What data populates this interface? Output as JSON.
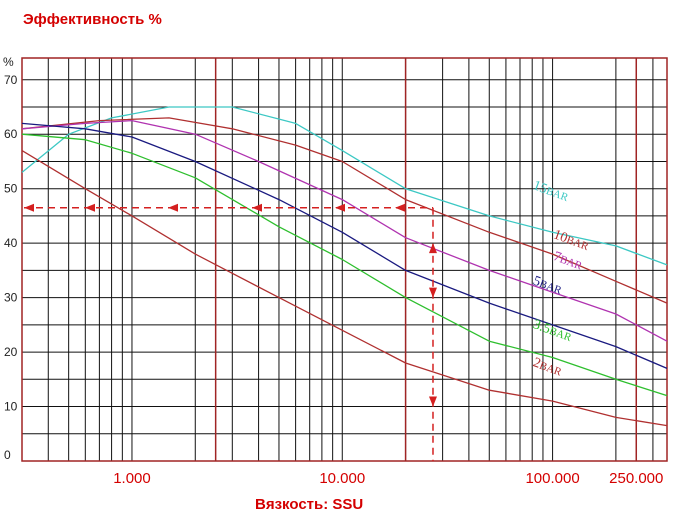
{
  "chart_data": {
    "type": "line",
    "title": "Эффективность %",
    "xlabel": "Вязкость: SSU",
    "ylabel": "%",
    "x_scale": "log",
    "xlim": [
      300,
      350000
    ],
    "ylim": [
      0,
      74
    ],
    "x_ticks": [
      {
        "value": 1000,
        "label": "1.000"
      },
      {
        "value": 10000,
        "label": "10.000"
      },
      {
        "value": 100000,
        "label": "100.000"
      },
      {
        "value": 250000,
        "label": "250.000"
      }
    ],
    "y_ticks": [
      0,
      10,
      20,
      30,
      40,
      50,
      60,
      70
    ],
    "grid": true,
    "series": [
      {
        "name": "15BAR",
        "label_main": "15",
        "color": "#3cc8c4",
        "label_at": [
          80000,
          50
        ],
        "points": [
          [
            300,
            53
          ],
          [
            500,
            60
          ],
          [
            800,
            63
          ],
          [
            1500,
            65
          ],
          [
            3000,
            65
          ],
          [
            6000,
            62
          ],
          [
            10000,
            57
          ],
          [
            20000,
            50
          ],
          [
            50000,
            45
          ],
          [
            100000,
            42
          ],
          [
            200000,
            39.5
          ],
          [
            350000,
            36
          ]
        ]
      },
      {
        "name": "10BAR",
        "label_main": "10",
        "color": "#b03030",
        "label_at": [
          100000,
          41
        ],
        "points": [
          [
            300,
            61
          ],
          [
            700,
            62.5
          ],
          [
            1500,
            63
          ],
          [
            3000,
            61
          ],
          [
            6000,
            58
          ],
          [
            10000,
            55
          ],
          [
            20000,
            48
          ],
          [
            50000,
            42
          ],
          [
            100000,
            38
          ],
          [
            200000,
            33
          ],
          [
            350000,
            29
          ]
        ]
      },
      {
        "name": "7BAR",
        "label_main": "7",
        "color": "#b033b0",
        "label_at": [
          100000,
          37
        ],
        "points": [
          [
            300,
            61
          ],
          [
            600,
            62
          ],
          [
            1000,
            62.5
          ],
          [
            2000,
            60
          ],
          [
            4000,
            55
          ],
          [
            10000,
            48
          ],
          [
            20000,
            41
          ],
          [
            50000,
            35
          ],
          [
            100000,
            31
          ],
          [
            200000,
            27
          ],
          [
            350000,
            22
          ]
        ]
      },
      {
        "name": "5BAR",
        "label_main": "5",
        "color": "#1a1a80",
        "label_at": [
          80000,
          32.5
        ],
        "points": [
          [
            300,
            62
          ],
          [
            600,
            61
          ],
          [
            1000,
            59.5
          ],
          [
            2000,
            55
          ],
          [
            5000,
            48
          ],
          [
            10000,
            42
          ],
          [
            20000,
            35
          ],
          [
            50000,
            29
          ],
          [
            100000,
            25
          ],
          [
            200000,
            21
          ],
          [
            350000,
            17
          ]
        ]
      },
      {
        "name": "3.5BAR",
        "label_main": "3.5",
        "color": "#2ebf2e",
        "label_at": [
          80000,
          24.5
        ],
        "points": [
          [
            300,
            60
          ],
          [
            600,
            59
          ],
          [
            1000,
            56.5
          ],
          [
            2000,
            52
          ],
          [
            5000,
            43
          ],
          [
            10000,
            37
          ],
          [
            20000,
            30
          ],
          [
            50000,
            22
          ],
          [
            100000,
            19
          ],
          [
            200000,
            15
          ],
          [
            350000,
            12
          ]
        ]
      },
      {
        "name": "2BAR",
        "label_main": "2",
        "color": "#b03030",
        "label_at": [
          80000,
          17.5
        ],
        "points": [
          [
            300,
            57
          ],
          [
            600,
            50
          ],
          [
            1000,
            45
          ],
          [
            2000,
            38
          ],
          [
            5000,
            30
          ],
          [
            10000,
            24
          ],
          [
            20000,
            18
          ],
          [
            50000,
            13
          ],
          [
            100000,
            11
          ],
          [
            200000,
            8
          ],
          [
            350000,
            6.5
          ]
        ]
      }
    ],
    "annotation": {
      "type": "dashed-arrows",
      "color": "#d42020",
      "x_value": 27000,
      "y_value": 46.5
    }
  }
}
